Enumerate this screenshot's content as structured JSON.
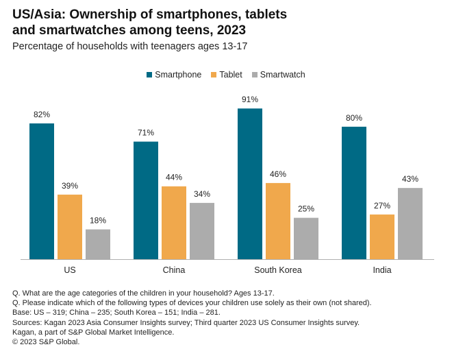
{
  "header": {
    "title_line1": "US/Asia: Ownership of smartphones, tablets",
    "title_line2": "and smartwatches among teens, 2023",
    "subtitle": "Percentage of households with teenagers ages 13-17"
  },
  "chart_data": {
    "type": "bar",
    "title": "US/Asia: Ownership of smartphones, tablets and smartwatches among teens, 2023",
    "subtitle": "Percentage of households with teenagers ages 13-17",
    "xlabel": "",
    "ylabel": "",
    "ylim": [
      0,
      100
    ],
    "grid": false,
    "legend_position": "top-center",
    "categories": [
      "US",
      "China",
      "South Korea",
      "India"
    ],
    "series": [
      {
        "name": "Smartphone",
        "color": "#006a85",
        "values": [
          82,
          71,
          91,
          80
        ]
      },
      {
        "name": "Tablet",
        "color": "#f0a84c",
        "values": [
          39,
          44,
          46,
          27
        ]
      },
      {
        "name": "Smartwatch",
        "color": "#acacac",
        "values": [
          18,
          34,
          25,
          43
        ]
      }
    ],
    "value_suffix": "%"
  },
  "notes": [
    "Q. What are the age categories of the children in your household? Ages 13-17.",
    "Q. Please indicate which of the following types of devices your children use solely as their own (not shared).",
    "Base: US – 319; China – 235; South Korea – 151; India – 281.",
    "Sources: Kagan 2023 Asia Consumer Insights survey; Third quarter 2023 US Consumer Insights survey.",
    "Kagan, a part of S&P Global Market Intelligence.",
    "© 2023 S&P Global."
  ]
}
